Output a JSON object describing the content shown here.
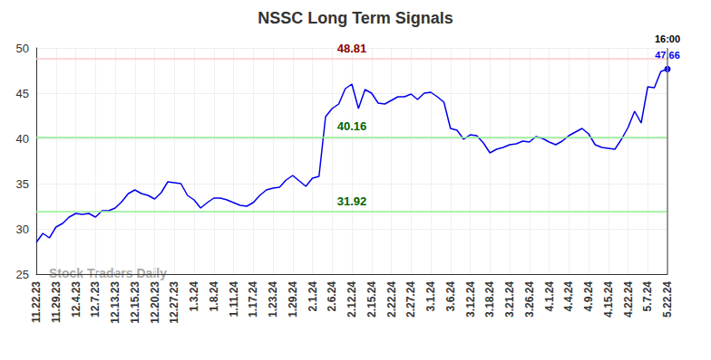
{
  "chart_data": {
    "type": "line",
    "title": "NSSC Long Term Signals",
    "watermark": "Stock Traders Daily",
    "color": "#0000ee",
    "grid": true,
    "ylim": [
      25,
      50
    ],
    "yticks": [
      25,
      30,
      35,
      40,
      45,
      50
    ],
    "last_point_time": "16:00",
    "reference_lines": [
      {
        "value": 48.81,
        "color": "#ffc8c8",
        "label_color": "#8b0000"
      },
      {
        "value": 40.16,
        "color": "#90ee90",
        "label_color": "#006400"
      },
      {
        "value": 31.92,
        "color": "#90ee90",
        "label_color": "#006400"
      }
    ],
    "categories": [
      "11.22.23",
      null,
      null,
      "11.29.23",
      null,
      null,
      "12.4.23",
      null,
      null,
      "12.7.23",
      null,
      null,
      "12.13.23",
      null,
      null,
      "12.15.23",
      null,
      null,
      "12.20.23",
      null,
      null,
      "12.27.23",
      null,
      null,
      "1.3.24",
      null,
      null,
      "1.8.24",
      null,
      null,
      "1.11.24",
      null,
      null,
      "1.17.24",
      null,
      null,
      "1.23.24",
      null,
      null,
      "1.29.24",
      null,
      null,
      "2.1.24",
      null,
      null,
      "2.6.24",
      null,
      null,
      "2.12.24",
      null,
      null,
      "2.15.24",
      null,
      null,
      "2.22.24",
      null,
      null,
      "2.27.24",
      null,
      null,
      "3.1.24",
      null,
      null,
      "3.6.24",
      null,
      null,
      "3.12.24",
      null,
      null,
      "3.18.24",
      null,
      null,
      "3.21.24",
      null,
      null,
      "3.26.24",
      null,
      null,
      "4.1.24",
      null,
      null,
      "4.4.24",
      null,
      null,
      "4.9.24",
      null,
      null,
      "4.15.24",
      null,
      null,
      "4.22.24",
      null,
      null,
      "5.7.24",
      null,
      null,
      "5.22.24"
    ],
    "values": [
      28.5,
      29.5,
      29.0,
      30.2,
      30.6,
      31.3,
      31.7,
      31.6,
      31.7,
      31.3,
      32.0,
      32.0,
      32.3,
      33.0,
      33.9,
      34.3,
      33.9,
      33.7,
      33.3,
      34.0,
      35.2,
      35.1,
      35.0,
      33.7,
      33.2,
      32.3,
      32.9,
      33.4,
      33.4,
      33.2,
      32.9,
      32.6,
      32.5,
      32.9,
      33.7,
      34.3,
      34.5,
      34.6,
      35.4,
      35.9,
      35.3,
      34.7,
      35.6,
      35.8,
      42.4,
      43.3,
      43.8,
      45.5,
      46.0,
      43.3,
      45.4,
      45.0,
      43.9,
      43.8,
      44.2,
      44.6,
      44.6,
      44.9,
      44.3,
      45.0,
      45.1,
      44.6,
      44.0,
      41.1,
      40.9,
      39.9,
      40.4,
      40.3,
      39.5,
      38.4,
      38.8,
      39.0,
      39.3,
      39.4,
      39.7,
      39.6,
      40.2,
      40.0,
      39.6,
      39.3,
      39.7,
      40.3,
      40.7,
      41.1,
      40.5,
      39.3,
      39.0,
      38.9,
      38.8,
      39.9,
      41.2,
      43.0,
      41.7,
      45.7,
      45.6,
      47.4,
      47.66
    ]
  }
}
